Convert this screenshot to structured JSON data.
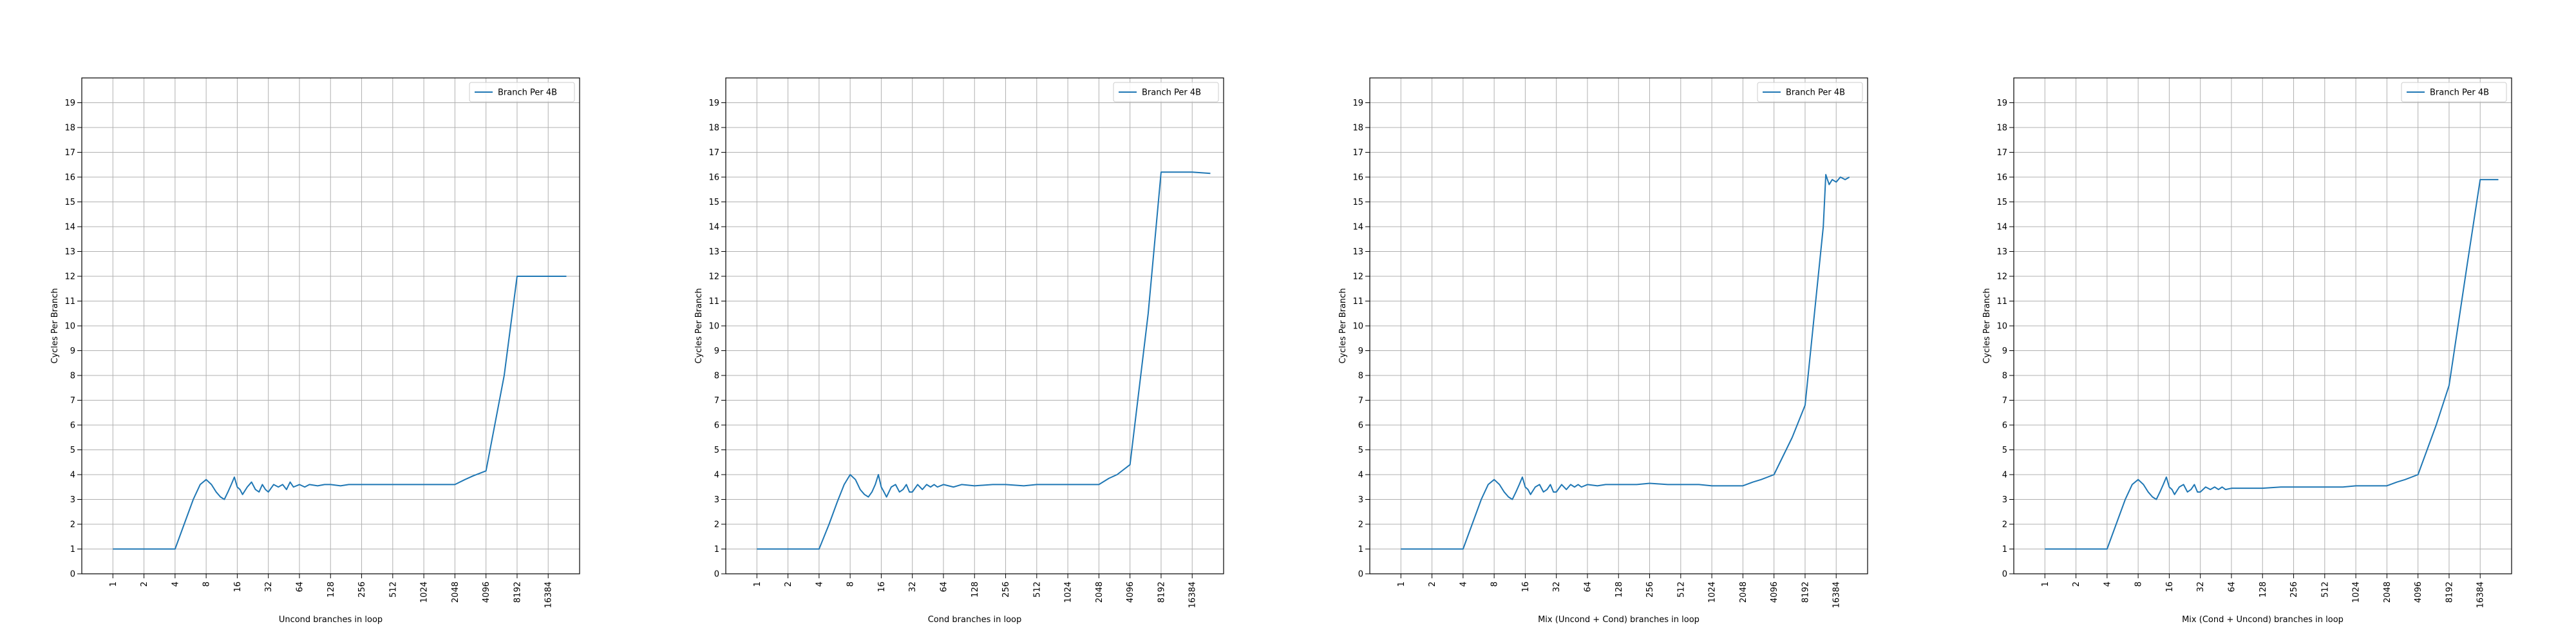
{
  "chart_data": [
    {
      "type": "line",
      "xlabel": "Uncond branches in loop",
      "ylabel": "Cycles Per Branch",
      "x_scale": "log2",
      "x_ticks": [
        1,
        2,
        4,
        8,
        16,
        32,
        64,
        128,
        256,
        512,
        1024,
        2048,
        4096,
        8192,
        16384
      ],
      "y_ticks": [
        0,
        1,
        2,
        3,
        4,
        5,
        6,
        7,
        8,
        9,
        10,
        11,
        12,
        13,
        14,
        15,
        16,
        17,
        18,
        19
      ],
      "xlim": [
        0.5,
        33000
      ],
      "ylim": [
        0,
        20
      ],
      "grid": true,
      "legend_position": "top-right",
      "color": "#1f77b4",
      "series": [
        {
          "name": "Branch Per 4B",
          "points": [
            [
              1,
              1.0
            ],
            [
              2,
              1.0
            ],
            [
              4,
              1.0
            ],
            [
              5,
              2.1
            ],
            [
              6,
              3.0
            ],
            [
              7,
              3.6
            ],
            [
              8,
              3.8
            ],
            [
              9,
              3.6
            ],
            [
              10,
              3.3
            ],
            [
              11,
              3.1
            ],
            [
              12,
              3.0
            ],
            [
              13,
              3.3
            ],
            [
              14,
              3.6
            ],
            [
              15,
              3.9
            ],
            [
              16,
              3.5
            ],
            [
              17,
              3.4
            ],
            [
              18,
              3.2
            ],
            [
              20,
              3.5
            ],
            [
              22,
              3.7
            ],
            [
              24,
              3.4
            ],
            [
              26,
              3.3
            ],
            [
              28,
              3.6
            ],
            [
              30,
              3.4
            ],
            [
              32,
              3.3
            ],
            [
              36,
              3.6
            ],
            [
              40,
              3.5
            ],
            [
              44,
              3.6
            ],
            [
              48,
              3.4
            ],
            [
              52,
              3.7
            ],
            [
              56,
              3.5
            ],
            [
              64,
              3.6
            ],
            [
              72,
              3.5
            ],
            [
              80,
              3.6
            ],
            [
              96,
              3.55
            ],
            [
              112,
              3.6
            ],
            [
              128,
              3.6
            ],
            [
              160,
              3.55
            ],
            [
              192,
              3.6
            ],
            [
              256,
              3.6
            ],
            [
              320,
              3.6
            ],
            [
              384,
              3.6
            ],
            [
              512,
              3.6
            ],
            [
              768,
              3.6
            ],
            [
              1024,
              3.6
            ],
            [
              1536,
              3.6
            ],
            [
              2048,
              3.6
            ],
            [
              2560,
              3.8
            ],
            [
              3072,
              3.95
            ],
            [
              4096,
              4.15
            ],
            [
              6144,
              8.0
            ],
            [
              8192,
              12.0
            ],
            [
              12288,
              12.0
            ],
            [
              16384,
              12.0
            ],
            [
              24576,
              12.0
            ]
          ]
        }
      ]
    },
    {
      "type": "line",
      "xlabel": "Cond branches in loop",
      "ylabel": "Cycles Per Branch",
      "x_scale": "log2",
      "x_ticks": [
        1,
        2,
        4,
        8,
        16,
        32,
        64,
        128,
        256,
        512,
        1024,
        2048,
        4096,
        8192,
        16384
      ],
      "y_ticks": [
        0,
        1,
        2,
        3,
        4,
        5,
        6,
        7,
        8,
        9,
        10,
        11,
        12,
        13,
        14,
        15,
        16,
        17,
        18,
        19
      ],
      "xlim": [
        0.5,
        33000
      ],
      "ylim": [
        0,
        20
      ],
      "grid": true,
      "legend_position": "top-right",
      "color": "#1f77b4",
      "series": [
        {
          "name": "Branch Per 4B",
          "points": [
            [
              1,
              1.0
            ],
            [
              2,
              1.0
            ],
            [
              4,
              1.0
            ],
            [
              5,
              2.0
            ],
            [
              6,
              2.9
            ],
            [
              7,
              3.6
            ],
            [
              8,
              4.0
            ],
            [
              9,
              3.8
            ],
            [
              10,
              3.4
            ],
            [
              11,
              3.2
            ],
            [
              12,
              3.1
            ],
            [
              13,
              3.3
            ],
            [
              14,
              3.6
            ],
            [
              15,
              4.0
            ],
            [
              16,
              3.5
            ],
            [
              17,
              3.3
            ],
            [
              18,
              3.1
            ],
            [
              20,
              3.5
            ],
            [
              22,
              3.6
            ],
            [
              24,
              3.3
            ],
            [
              26,
              3.4
            ],
            [
              28,
              3.6
            ],
            [
              30,
              3.3
            ],
            [
              32,
              3.3
            ],
            [
              36,
              3.6
            ],
            [
              40,
              3.4
            ],
            [
              44,
              3.6
            ],
            [
              48,
              3.5
            ],
            [
              52,
              3.6
            ],
            [
              56,
              3.5
            ],
            [
              64,
              3.6
            ],
            [
              80,
              3.5
            ],
            [
              96,
              3.6
            ],
            [
              128,
              3.55
            ],
            [
              192,
              3.6
            ],
            [
              256,
              3.6
            ],
            [
              384,
              3.55
            ],
            [
              512,
              3.6
            ],
            [
              768,
              3.6
            ],
            [
              1024,
              3.6
            ],
            [
              1536,
              3.6
            ],
            [
              2048,
              3.6
            ],
            [
              2560,
              3.85
            ],
            [
              3072,
              4.0
            ],
            [
              4096,
              4.4
            ],
            [
              6144,
              10.5
            ],
            [
              8192,
              16.2
            ],
            [
              12288,
              16.2
            ],
            [
              16384,
              16.2
            ],
            [
              24576,
              16.15
            ]
          ]
        }
      ]
    },
    {
      "type": "line",
      "xlabel": "Mix (Uncond + Cond) branches in loop",
      "ylabel": "Cycles Per Branch",
      "x_scale": "log2",
      "x_ticks": [
        1,
        2,
        4,
        8,
        16,
        32,
        64,
        128,
        256,
        512,
        1024,
        2048,
        4096,
        8192,
        16384
      ],
      "y_ticks": [
        0,
        1,
        2,
        3,
        4,
        5,
        6,
        7,
        8,
        9,
        10,
        11,
        12,
        13,
        14,
        15,
        16,
        17,
        18,
        19
      ],
      "xlim": [
        0.5,
        33000
      ],
      "ylim": [
        0,
        20
      ],
      "grid": true,
      "legend_position": "top-right",
      "color": "#1f77b4",
      "series": [
        {
          "name": "Branch Per 4B",
          "points": [
            [
              1,
              1.0
            ],
            [
              2,
              1.0
            ],
            [
              4,
              1.0
            ],
            [
              5,
              2.1
            ],
            [
              6,
              3.0
            ],
            [
              7,
              3.6
            ],
            [
              8,
              3.8
            ],
            [
              9,
              3.6
            ],
            [
              10,
              3.3
            ],
            [
              11,
              3.1
            ],
            [
              12,
              3.0
            ],
            [
              13,
              3.3
            ],
            [
              14,
              3.6
            ],
            [
              15,
              3.9
            ],
            [
              16,
              3.5
            ],
            [
              17,
              3.4
            ],
            [
              18,
              3.2
            ],
            [
              20,
              3.5
            ],
            [
              22,
              3.6
            ],
            [
              24,
              3.3
            ],
            [
              26,
              3.4
            ],
            [
              28,
              3.6
            ],
            [
              30,
              3.3
            ],
            [
              32,
              3.3
            ],
            [
              36,
              3.6
            ],
            [
              40,
              3.4
            ],
            [
              44,
              3.6
            ],
            [
              48,
              3.5
            ],
            [
              52,
              3.6
            ],
            [
              56,
              3.5
            ],
            [
              64,
              3.6
            ],
            [
              80,
              3.55
            ],
            [
              96,
              3.6
            ],
            [
              128,
              3.6
            ],
            [
              192,
              3.6
            ],
            [
              256,
              3.65
            ],
            [
              384,
              3.6
            ],
            [
              512,
              3.6
            ],
            [
              768,
              3.6
            ],
            [
              1024,
              3.55
            ],
            [
              1536,
              3.55
            ],
            [
              2048,
              3.55
            ],
            [
              2560,
              3.7
            ],
            [
              3072,
              3.8
            ],
            [
              4096,
              4.0
            ],
            [
              6144,
              5.5
            ],
            [
              8192,
              6.8
            ],
            [
              12288,
              14.0
            ],
            [
              13000,
              16.1
            ],
            [
              14000,
              15.7
            ],
            [
              15000,
              15.9
            ],
            [
              16384,
              15.8
            ],
            [
              18000,
              16.0
            ],
            [
              20000,
              15.9
            ],
            [
              22000,
              16.0
            ]
          ]
        }
      ]
    },
    {
      "type": "line",
      "xlabel": "Mix (Cond + Uncond) branches in loop",
      "ylabel": "Cycles Per Branch",
      "x_scale": "log2",
      "x_ticks": [
        1,
        2,
        4,
        8,
        16,
        32,
        64,
        128,
        256,
        512,
        1024,
        2048,
        4096,
        8192,
        16384
      ],
      "y_ticks": [
        0,
        1,
        2,
        3,
        4,
        5,
        6,
        7,
        8,
        9,
        10,
        11,
        12,
        13,
        14,
        15,
        16,
        17,
        18,
        19
      ],
      "xlim": [
        0.5,
        33000
      ],
      "ylim": [
        0,
        20
      ],
      "grid": true,
      "legend_position": "top-right",
      "color": "#1f77b4",
      "series": [
        {
          "name": "Branch Per 4B",
          "points": [
            [
              1,
              1.0
            ],
            [
              2,
              1.0
            ],
            [
              4,
              1.0
            ],
            [
              5,
              2.1
            ],
            [
              6,
              3.0
            ],
            [
              7,
              3.6
            ],
            [
              8,
              3.8
            ],
            [
              9,
              3.6
            ],
            [
              10,
              3.3
            ],
            [
              11,
              3.1
            ],
            [
              12,
              3.0
            ],
            [
              13,
              3.3
            ],
            [
              14,
              3.6
            ],
            [
              15,
              3.9
            ],
            [
              16,
              3.5
            ],
            [
              17,
              3.4
            ],
            [
              18,
              3.2
            ],
            [
              20,
              3.5
            ],
            [
              22,
              3.6
            ],
            [
              24,
              3.3
            ],
            [
              26,
              3.4
            ],
            [
              28,
              3.6
            ],
            [
              30,
              3.3
            ],
            [
              32,
              3.3
            ],
            [
              36,
              3.5
            ],
            [
              40,
              3.4
            ],
            [
              44,
              3.5
            ],
            [
              48,
              3.4
            ],
            [
              52,
              3.5
            ],
            [
              56,
              3.4
            ],
            [
              64,
              3.45
            ],
            [
              96,
              3.45
            ],
            [
              128,
              3.45
            ],
            [
              192,
              3.5
            ],
            [
              256,
              3.5
            ],
            [
              384,
              3.5
            ],
            [
              512,
              3.5
            ],
            [
              768,
              3.5
            ],
            [
              1024,
              3.55
            ],
            [
              1536,
              3.55
            ],
            [
              2048,
              3.55
            ],
            [
              2560,
              3.7
            ],
            [
              3072,
              3.8
            ],
            [
              4096,
              4.0
            ],
            [
              6144,
              6.0
            ],
            [
              8192,
              7.6
            ],
            [
              12288,
              12.5
            ],
            [
              16384,
              15.9
            ],
            [
              20000,
              15.9
            ],
            [
              24576,
              15.9
            ]
          ]
        }
      ]
    }
  ]
}
